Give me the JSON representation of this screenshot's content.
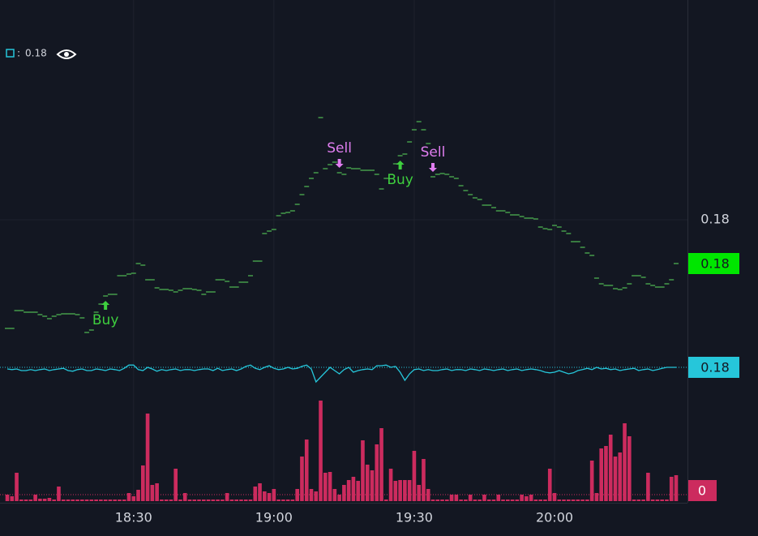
{
  "chart_data": {
    "type": "line",
    "categories": [
      null,
      null,
      null,
      null,
      null,
      null,
      null,
      null,
      null,
      null,
      null,
      null,
      null,
      null,
      null,
      null,
      null,
      null,
      null,
      null,
      null,
      null,
      null,
      null,
      null,
      null,
      null,
      "18:30",
      null,
      null,
      null,
      null,
      null,
      null,
      null,
      null,
      null,
      null,
      null,
      null,
      null,
      null,
      null,
      null,
      null,
      null,
      null,
      null,
      null,
      null,
      null,
      null,
      null,
      null,
      null,
      null,
      null,
      "19:00",
      null,
      null,
      null,
      null,
      null,
      null,
      null,
      null,
      null,
      null,
      null,
      null,
      null,
      null,
      null,
      null,
      null,
      null,
      null,
      null,
      null,
      null,
      null,
      null,
      null,
      null,
      null,
      null,
      null,
      "19:30",
      null,
      null,
      null,
      null,
      null,
      null,
      null,
      null,
      null,
      null,
      null,
      null,
      null,
      null,
      null,
      null,
      null,
      null,
      null,
      null,
      null,
      null,
      null,
      null,
      null,
      null,
      null,
      null,
      null,
      "20:00",
      null,
      null,
      null,
      null,
      null,
      null,
      null,
      null,
      null,
      null,
      null,
      null,
      null,
      null,
      null,
      null,
      null,
      null,
      null,
      null,
      null,
      null,
      null,
      null,
      null,
      null
    ],
    "values": [
      0.17866,
      0.17866,
      0.17888,
      0.17888,
      0.17886,
      0.17886,
      0.17886,
      0.17883,
      0.17881,
      0.17878,
      0.17881,
      0.17883,
      0.17884,
      0.17884,
      0.17884,
      0.17883,
      0.17879,
      0.17861,
      0.17864,
      0.17886,
      0.17896,
      0.17906,
      0.17908,
      0.17908,
      0.17931,
      0.17931,
      0.17933,
      0.17934,
      0.17946,
      0.17944,
      0.17926,
      0.17926,
      0.17916,
      0.17914,
      0.17914,
      0.17913,
      0.17911,
      0.17913,
      0.17915,
      0.17915,
      0.17914,
      0.17913,
      0.17908,
      0.17911,
      0.17911,
      0.17926,
      0.17926,
      0.17924,
      0.17917,
      0.17917,
      0.17923,
      0.17923,
      0.17931,
      0.17949,
      0.17949,
      0.17983,
      0.17986,
      0.17988,
      0.18005,
      0.18008,
      0.18009,
      0.18011,
      0.18019,
      0.18031,
      0.18041,
      0.18051,
      0.18058,
      0.18126,
      0.18063,
      0.18068,
      0.18071,
      0.18058,
      0.18056,
      0.18064,
      0.18063,
      0.18063,
      0.18061,
      0.18061,
      0.18061,
      0.18056,
      0.18038,
      0.18051,
      0.18056,
      0.18069,
      0.18079,
      0.18081,
      0.18096,
      0.18111,
      0.18121,
      0.18111,
      0.18094,
      0.18053,
      0.18056,
      0.18057,
      0.18056,
      0.18053,
      0.18051,
      0.18042,
      0.18036,
      0.18031,
      0.18027,
      0.18025,
      0.18018,
      0.18018,
      0.18015,
      0.18011,
      0.18011,
      0.18009,
      0.18006,
      0.18006,
      0.18004,
      0.18002,
      0.18002,
      0.18001,
      0.17991,
      0.17989,
      0.17988,
      0.17993,
      0.17991,
      0.17986,
      0.17983,
      0.17973,
      0.17973,
      0.17966,
      0.17959,
      0.17956,
      0.17928,
      0.17921,
      0.17919,
      0.17919,
      0.17915,
      0.17914,
      0.17916,
      0.17921,
      0.17931,
      0.17931,
      0.17929,
      0.17921,
      0.17919,
      0.17917,
      0.17917,
      0.17921,
      0.17926,
      0.17946
    ],
    "color": "#4caf50",
    "ylim": [
      0.17831,
      0.18271
    ],
    "yticks": [
      0.18
    ],
    "grid": true,
    "price_marker": {
      "value": 0.17946,
      "label": "0.18"
    },
    "signals": [
      null,
      null,
      null,
      null,
      null,
      null,
      null,
      null,
      null,
      null,
      null,
      null,
      null,
      null,
      null,
      null,
      null,
      null,
      null,
      null,
      null,
      "Buy",
      null,
      null,
      null,
      null,
      null,
      null,
      null,
      null,
      null,
      null,
      null,
      null,
      null,
      null,
      null,
      null,
      null,
      null,
      null,
      null,
      null,
      null,
      null,
      null,
      null,
      null,
      null,
      null,
      null,
      null,
      null,
      null,
      null,
      null,
      null,
      null,
      null,
      null,
      null,
      null,
      null,
      null,
      null,
      null,
      null,
      null,
      null,
      null,
      null,
      "Sell",
      null,
      null,
      null,
      null,
      null,
      null,
      null,
      null,
      null,
      null,
      null,
      null,
      "Buy",
      null,
      null,
      null,
      null,
      null,
      null,
      "Sell",
      null,
      null,
      null,
      null,
      null,
      null,
      null,
      null,
      null,
      null,
      null,
      null,
      null,
      null,
      null,
      null,
      null,
      null,
      null,
      null,
      null,
      null,
      null,
      null,
      null,
      null,
      null,
      null,
      null,
      null,
      null,
      null,
      null,
      null,
      null,
      null,
      null,
      null,
      null,
      null,
      null,
      null,
      null,
      null,
      null,
      null,
      null,
      null,
      null,
      null,
      null,
      null
    ],
    "buy_color": "#3ecf3e",
    "sell_color": "#e07ef0",
    "indicator": {
      "type": "line",
      "color": "#26c6da",
      "legend_value": "0.18",
      "ylim": [
        0.1795,
        0.1805
      ],
      "marker": {
        "value": 0.18005,
        "label": "0.18"
      },
      "values": [
        0.18,
        0.17998,
        0.18,
        0.17995,
        0.17995,
        0.17998,
        0.17995,
        0.17998,
        0.18,
        0.17995,
        0.17998,
        0.18,
        0.18002,
        0.17995,
        0.17993,
        0.17998,
        0.18,
        0.17995,
        0.17995,
        0.18,
        0.17998,
        0.17995,
        0.18,
        0.17998,
        0.17995,
        0.18002,
        0.18012,
        0.18012,
        0.17998,
        0.17995,
        0.18005,
        0.18,
        0.17993,
        0.17998,
        0.17995,
        0.17998,
        0.18,
        0.17995,
        0.17998,
        0.17998,
        0.17995,
        0.17998,
        0.18,
        0.18,
        0.17995,
        0.18002,
        0.17995,
        0.17998,
        0.18,
        0.17995,
        0.18,
        0.18008,
        0.18012,
        0.18002,
        0.17998,
        0.18005,
        0.1801,
        0.18002,
        0.17998,
        0.18,
        0.18005,
        0.18,
        0.18002,
        0.18008,
        0.18012,
        0.18,
        0.1796,
        0.17975,
        0.1799,
        0.18005,
        0.17995,
        0.17985,
        0.17998,
        0.18005,
        0.1799,
        0.17995,
        0.17998,
        0.18,
        0.17998,
        0.1801,
        0.1801,
        0.18012,
        0.18005,
        0.18008,
        0.1799,
        0.17965,
        0.17985,
        0.17998,
        0.18,
        0.17995,
        0.17998,
        0.17995,
        0.17995,
        0.17998,
        0.18,
        0.17995,
        0.17998,
        0.17998,
        0.17995,
        0.18,
        0.17998,
        0.17995,
        0.18,
        0.17998,
        0.17995,
        0.17998,
        0.18,
        0.17995,
        0.17998,
        0.18,
        0.17995,
        0.17998,
        0.18,
        0.17998,
        0.17995,
        0.1799,
        0.17988,
        0.1799,
        0.17995,
        0.1799,
        0.17985,
        0.17988,
        0.17995,
        0.17998,
        0.18002,
        0.17998,
        0.18005,
        0.18,
        0.18002,
        0.17998,
        0.18,
        0.17995,
        0.17998,
        0.18,
        0.18002,
        0.17995,
        0.17998,
        0.18,
        0.17995,
        0.17998,
        0.18002,
        0.18005,
        0.18005,
        0.18005
      ]
    },
    "volume": {
      "type": "bar",
      "color": "#cc2b5e",
      "ylim": [
        0,
        130
      ],
      "marker": 0,
      "values": [
        8,
        6,
        35,
        2,
        2,
        2,
        8,
        3,
        3,
        4,
        2,
        18,
        2,
        2,
        2,
        2,
        2,
        2,
        2,
        2,
        2,
        2,
        2,
        2,
        2,
        2,
        10,
        6,
        14,
        44,
        108,
        20,
        22,
        2,
        2,
        2,
        40,
        2,
        10,
        2,
        2,
        2,
        2,
        2,
        2,
        2,
        2,
        10,
        2,
        2,
        2,
        2,
        2,
        18,
        22,
        12,
        10,
        15,
        2,
        2,
        2,
        2,
        15,
        55,
        76,
        15,
        12,
        124,
        35,
        36,
        15,
        8,
        20,
        26,
        30,
        25,
        75,
        45,
        38,
        70,
        90,
        2,
        40,
        25,
        26,
        26,
        26,
        62,
        20,
        52,
        15,
        2,
        2,
        2,
        2,
        8,
        8,
        2,
        2,
        8,
        2,
        2,
        8,
        2,
        2,
        8,
        2,
        2,
        2,
        2,
        8,
        6,
        8,
        2,
        2,
        2,
        40,
        10,
        2,
        2,
        2,
        2,
        2,
        2,
        2,
        50,
        10,
        65,
        68,
        82,
        55,
        60,
        96,
        80,
        2,
        2,
        2,
        35,
        2,
        2,
        2,
        2,
        30,
        32
      ]
    }
  }
}
